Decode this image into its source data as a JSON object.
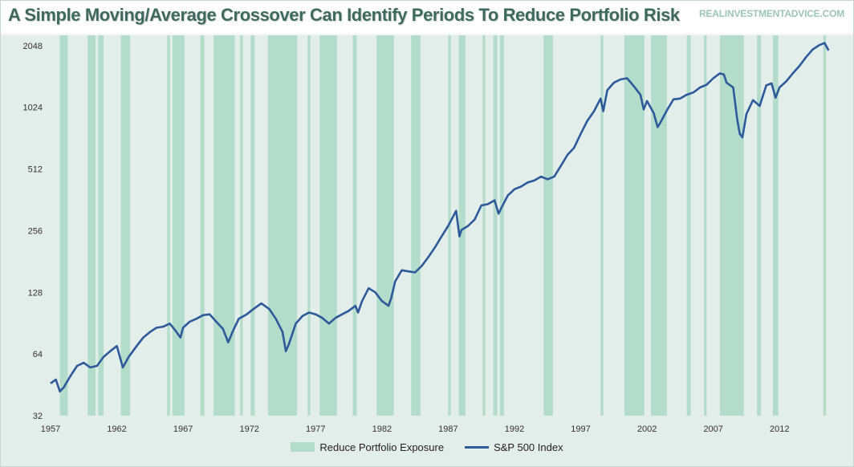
{
  "title": "A Simple Moving/Average Crossover Can Identify Periods To Reduce Portfolio Risk",
  "watermark": "REALINVESTMENTADVICE.COM",
  "colors": {
    "band": "#b3dccb",
    "line": "#2d5a9a",
    "plot_bg": "#e3edea",
    "title": "#3d6a5c"
  },
  "legend": {
    "band_label": "Reduce Portfolio Exposure",
    "line_label": "S&P 500 Index"
  },
  "chart_data": {
    "type": "line",
    "yscale": "log2",
    "ylim": [
      32,
      2300
    ],
    "xlim": [
      1957,
      2015.8
    ],
    "y_ticks": [
      32,
      64,
      128,
      256,
      512,
      1024,
      2048
    ],
    "x_ticks": [
      1957,
      1962,
      1967,
      1972,
      1977,
      1982,
      1987,
      1992,
      1997,
      2002,
      2007,
      2012
    ],
    "grid": false,
    "legend_position": "bottom",
    "series": [
      {
        "name": "S&P 500 Index",
        "x": [
          1957.0,
          1957.4,
          1957.7,
          1958.0,
          1958.5,
          1959.0,
          1959.5,
          1960.0,
          1960.5,
          1961.0,
          1961.5,
          1962.0,
          1962.45,
          1962.9,
          1963.5,
          1964.0,
          1964.5,
          1965.0,
          1965.5,
          1966.0,
          1966.5,
          1966.8,
          1967.0,
          1967.5,
          1968.0,
          1968.5,
          1969.0,
          1969.5,
          1970.0,
          1970.4,
          1970.8,
          1971.2,
          1971.8,
          1972.3,
          1972.9,
          1973.5,
          1974.0,
          1974.5,
          1974.75,
          1975.0,
          1975.5,
          1976.0,
          1976.5,
          1977.0,
          1977.5,
          1978.0,
          1978.5,
          1979.0,
          1979.5,
          1980.0,
          1980.2,
          1980.5,
          1981.0,
          1981.5,
          1982.0,
          1982.5,
          1982.7,
          1983.0,
          1983.5,
          1984.0,
          1984.5,
          1985.0,
          1985.5,
          1986.0,
          1986.5,
          1987.0,
          1987.6,
          1987.85,
          1988.0,
          1988.5,
          1989.0,
          1989.5,
          1990.0,
          1990.5,
          1990.8,
          1991.0,
          1991.5,
          1992.0,
          1992.5,
          1993.0,
          1993.5,
          1994.0,
          1994.5,
          1995.0,
          1995.5,
          1996.0,
          1996.5,
          1997.0,
          1997.5,
          1998.0,
          1998.5,
          1998.7,
          1999.0,
          1999.5,
          2000.0,
          2000.5,
          2001.0,
          2001.5,
          2001.75,
          2002.0,
          2002.5,
          2002.8,
          2003.0,
          2003.5,
          2004.0,
          2004.5,
          2005.0,
          2005.5,
          2006.0,
          2006.5,
          2007.0,
          2007.5,
          2007.8,
          2008.0,
          2008.5,
          2008.8,
          2009.0,
          2009.2,
          2009.5,
          2010.0,
          2010.5,
          2011.0,
          2011.4,
          2011.7,
          2012.0,
          2012.5,
          2013.0,
          2013.5,
          2014.0,
          2014.5,
          2015.0,
          2015.4,
          2015.7
        ],
        "values": [
          46,
          48,
          42,
          44,
          50,
          56,
          58,
          55,
          56,
          62,
          66,
          70,
          55,
          62,
          70,
          77,
          82,
          86,
          87,
          90,
          82,
          77,
          86,
          92,
          95,
          99,
          100,
          92,
          85,
          73,
          84,
          95,
          100,
          106,
          113,
          106,
          95,
          82,
          66,
          72,
          90,
          98,
          102,
          100,
          96,
          90,
          96,
          100,
          104,
          110,
          102,
          116,
          134,
          128,
          116,
          110,
          120,
          145,
          164,
          162,
          160,
          172,
          190,
          212,
          240,
          270,
          320,
          240,
          258,
          270,
          290,
          340,
          345,
          360,
          310,
          330,
          380,
          408,
          420,
          440,
          450,
          470,
          456,
          470,
          530,
          600,
          650,
          760,
          880,
          980,
          1130,
          980,
          1240,
          1350,
          1400,
          1420,
          1300,
          1180,
          1000,
          1100,
          960,
          820,
          860,
          990,
          1120,
          1130,
          1180,
          1210,
          1280,
          1320,
          1420,
          1500,
          1480,
          1350,
          1280,
          900,
          760,
          730,
          950,
          1110,
          1040,
          1310,
          1340,
          1140,
          1280,
          1370,
          1500,
          1630,
          1800,
          1960,
          2060,
          2110,
          1940
        ]
      }
    ],
    "bands": [
      [
        1957.7,
        1958.3
      ],
      [
        1959.8,
        1960.4
      ],
      [
        1960.6,
        1961.0
      ],
      [
        1962.3,
        1963.0
      ],
      [
        1965.8,
        1966.0
      ],
      [
        1966.2,
        1967.1
      ],
      [
        1968.3,
        1968.6
      ],
      [
        1969.3,
        1970.9
      ],
      [
        1971.3,
        1971.5
      ],
      [
        1972.1,
        1972.4
      ],
      [
        1973.4,
        1975.6
      ],
      [
        1976.4,
        1976.6
      ],
      [
        1977.3,
        1978.6
      ],
      [
        1979.8,
        1980.1
      ],
      [
        1981.6,
        1982.9
      ],
      [
        1984.2,
        1984.9
      ],
      [
        1987.0,
        1987.2
      ],
      [
        1987.8,
        1988.3
      ],
      [
        1989.6,
        1989.8
      ],
      [
        1990.4,
        1990.7
      ],
      [
        1990.9,
        1991.2
      ],
      [
        1994.2,
        1994.9
      ],
      [
        1998.5,
        1998.7
      ],
      [
        2000.3,
        2001.8
      ],
      [
        2002.3,
        2003.5
      ],
      [
        2005.0,
        2005.3
      ],
      [
        2006.3,
        2006.5
      ],
      [
        2007.5,
        2009.3
      ],
      [
        2010.3,
        2010.6
      ],
      [
        2011.5,
        2011.9
      ],
      [
        2015.3,
        2015.5
      ]
    ]
  }
}
